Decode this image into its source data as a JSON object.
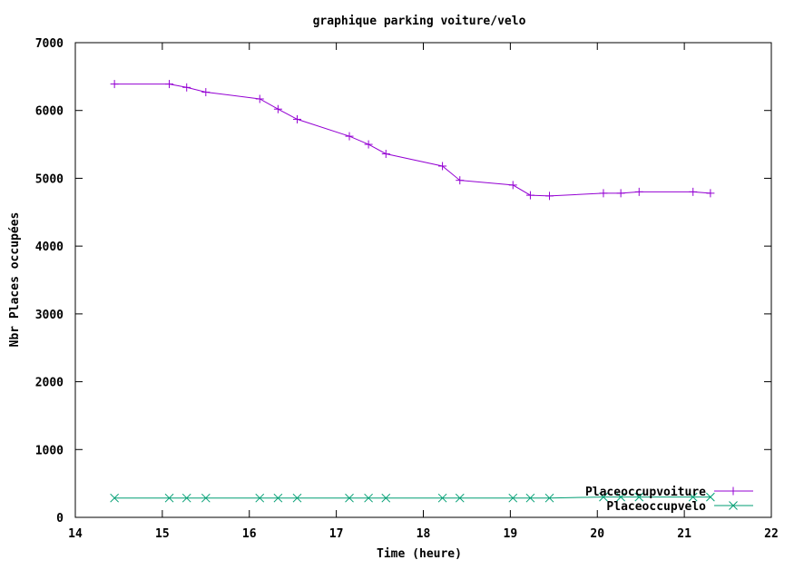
{
  "chart_data": {
    "type": "line",
    "title": "graphique parking voiture/velo",
    "xlabel": "Time (heure)",
    "ylabel": "Nbr Places occupées",
    "xlim": [
      14,
      22
    ],
    "ylim": [
      0,
      7000
    ],
    "xticks": [
      14,
      15,
      16,
      17,
      18,
      19,
      20,
      21,
      22
    ],
    "yticks": [
      0,
      1000,
      2000,
      3000,
      4000,
      5000,
      6000,
      7000
    ],
    "grid": false,
    "legend_position": "bottom-right",
    "series": [
      {
        "name": "Placeoccupvoiture",
        "color": "#9400d3",
        "marker": "plus",
        "points": [
          [
            14.45,
            6390
          ],
          [
            15.08,
            6390
          ],
          [
            15.28,
            6340
          ],
          [
            15.5,
            6270
          ],
          [
            16.12,
            6170
          ],
          [
            16.33,
            6020
          ],
          [
            16.55,
            5870
          ],
          [
            17.15,
            5620
          ],
          [
            17.37,
            5500
          ],
          [
            17.57,
            5360
          ],
          [
            18.22,
            5180
          ],
          [
            18.42,
            4970
          ],
          [
            19.03,
            4900
          ],
          [
            19.23,
            4750
          ],
          [
            19.45,
            4740
          ],
          [
            20.07,
            4780
          ],
          [
            20.27,
            4780
          ],
          [
            20.48,
            4800
          ],
          [
            21.1,
            4800
          ],
          [
            21.3,
            4780
          ]
        ]
      },
      {
        "name": "Placeoccupvelo",
        "color": "#009e73",
        "marker": "cross",
        "points": [
          [
            14.45,
            285
          ],
          [
            15.08,
            285
          ],
          [
            15.28,
            285
          ],
          [
            15.5,
            285
          ],
          [
            16.12,
            285
          ],
          [
            16.33,
            285
          ],
          [
            16.55,
            285
          ],
          [
            17.15,
            285
          ],
          [
            17.37,
            285
          ],
          [
            17.57,
            285
          ],
          [
            18.22,
            285
          ],
          [
            18.42,
            285
          ],
          [
            19.03,
            285
          ],
          [
            19.23,
            285
          ],
          [
            19.45,
            285
          ],
          [
            20.07,
            300
          ],
          [
            20.27,
            300
          ],
          [
            20.48,
            300
          ],
          [
            21.1,
            300
          ],
          [
            21.3,
            300
          ]
        ]
      }
    ]
  }
}
